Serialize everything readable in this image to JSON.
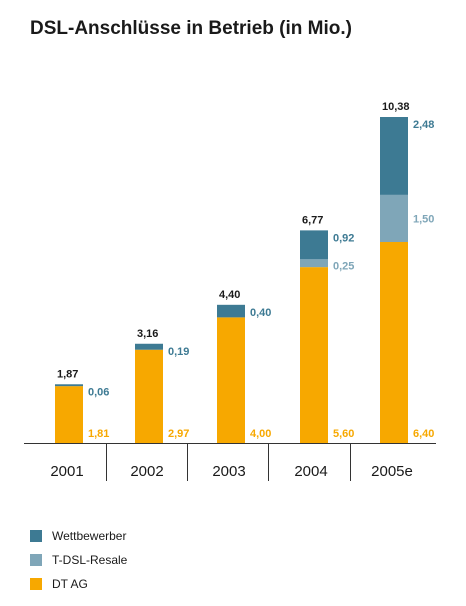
{
  "chart_data": {
    "type": "bar",
    "stacked": true,
    "title": "DSL-Anschlüsse in Betrieb (in Mio.)",
    "categories": [
      "2001",
      "2002",
      "2003",
      "2004",
      "2005e"
    ],
    "totals": [
      "1,87",
      "3,16",
      "4,40",
      "6,77",
      "10,38"
    ],
    "series": [
      {
        "name": "DT AG",
        "color": "#f7a800",
        "values": [
          1.81,
          2.97,
          4.0,
          5.6,
          6.4
        ],
        "labels": [
          "1,81",
          "2,97",
          "4,00",
          "5,60",
          "6,40"
        ]
      },
      {
        "name": "T-DSL-Resale",
        "color": "#7fa6b8",
        "values": [
          0,
          0,
          0,
          0.25,
          1.5
        ],
        "labels": [
          "",
          "",
          "",
          "0,25",
          "1,50"
        ]
      },
      {
        "name": "Wettbewerber",
        "color": "#3d7a93",
        "values": [
          0.06,
          0.19,
          0.4,
          0.92,
          2.48
        ],
        "labels": [
          "0,06",
          "0,19",
          "0,40",
          "0,92",
          "2,48"
        ]
      }
    ],
    "ylim": [
      0,
      10.38
    ],
    "legend_position": "bottom-left",
    "grid": false
  },
  "legend": [
    {
      "name": "Wettbewerber",
      "color": "#3d7a93"
    },
    {
      "name": "T-DSL-Resale",
      "color": "#7fa6b8"
    },
    {
      "name": "DT AG",
      "color": "#f7a800"
    }
  ]
}
